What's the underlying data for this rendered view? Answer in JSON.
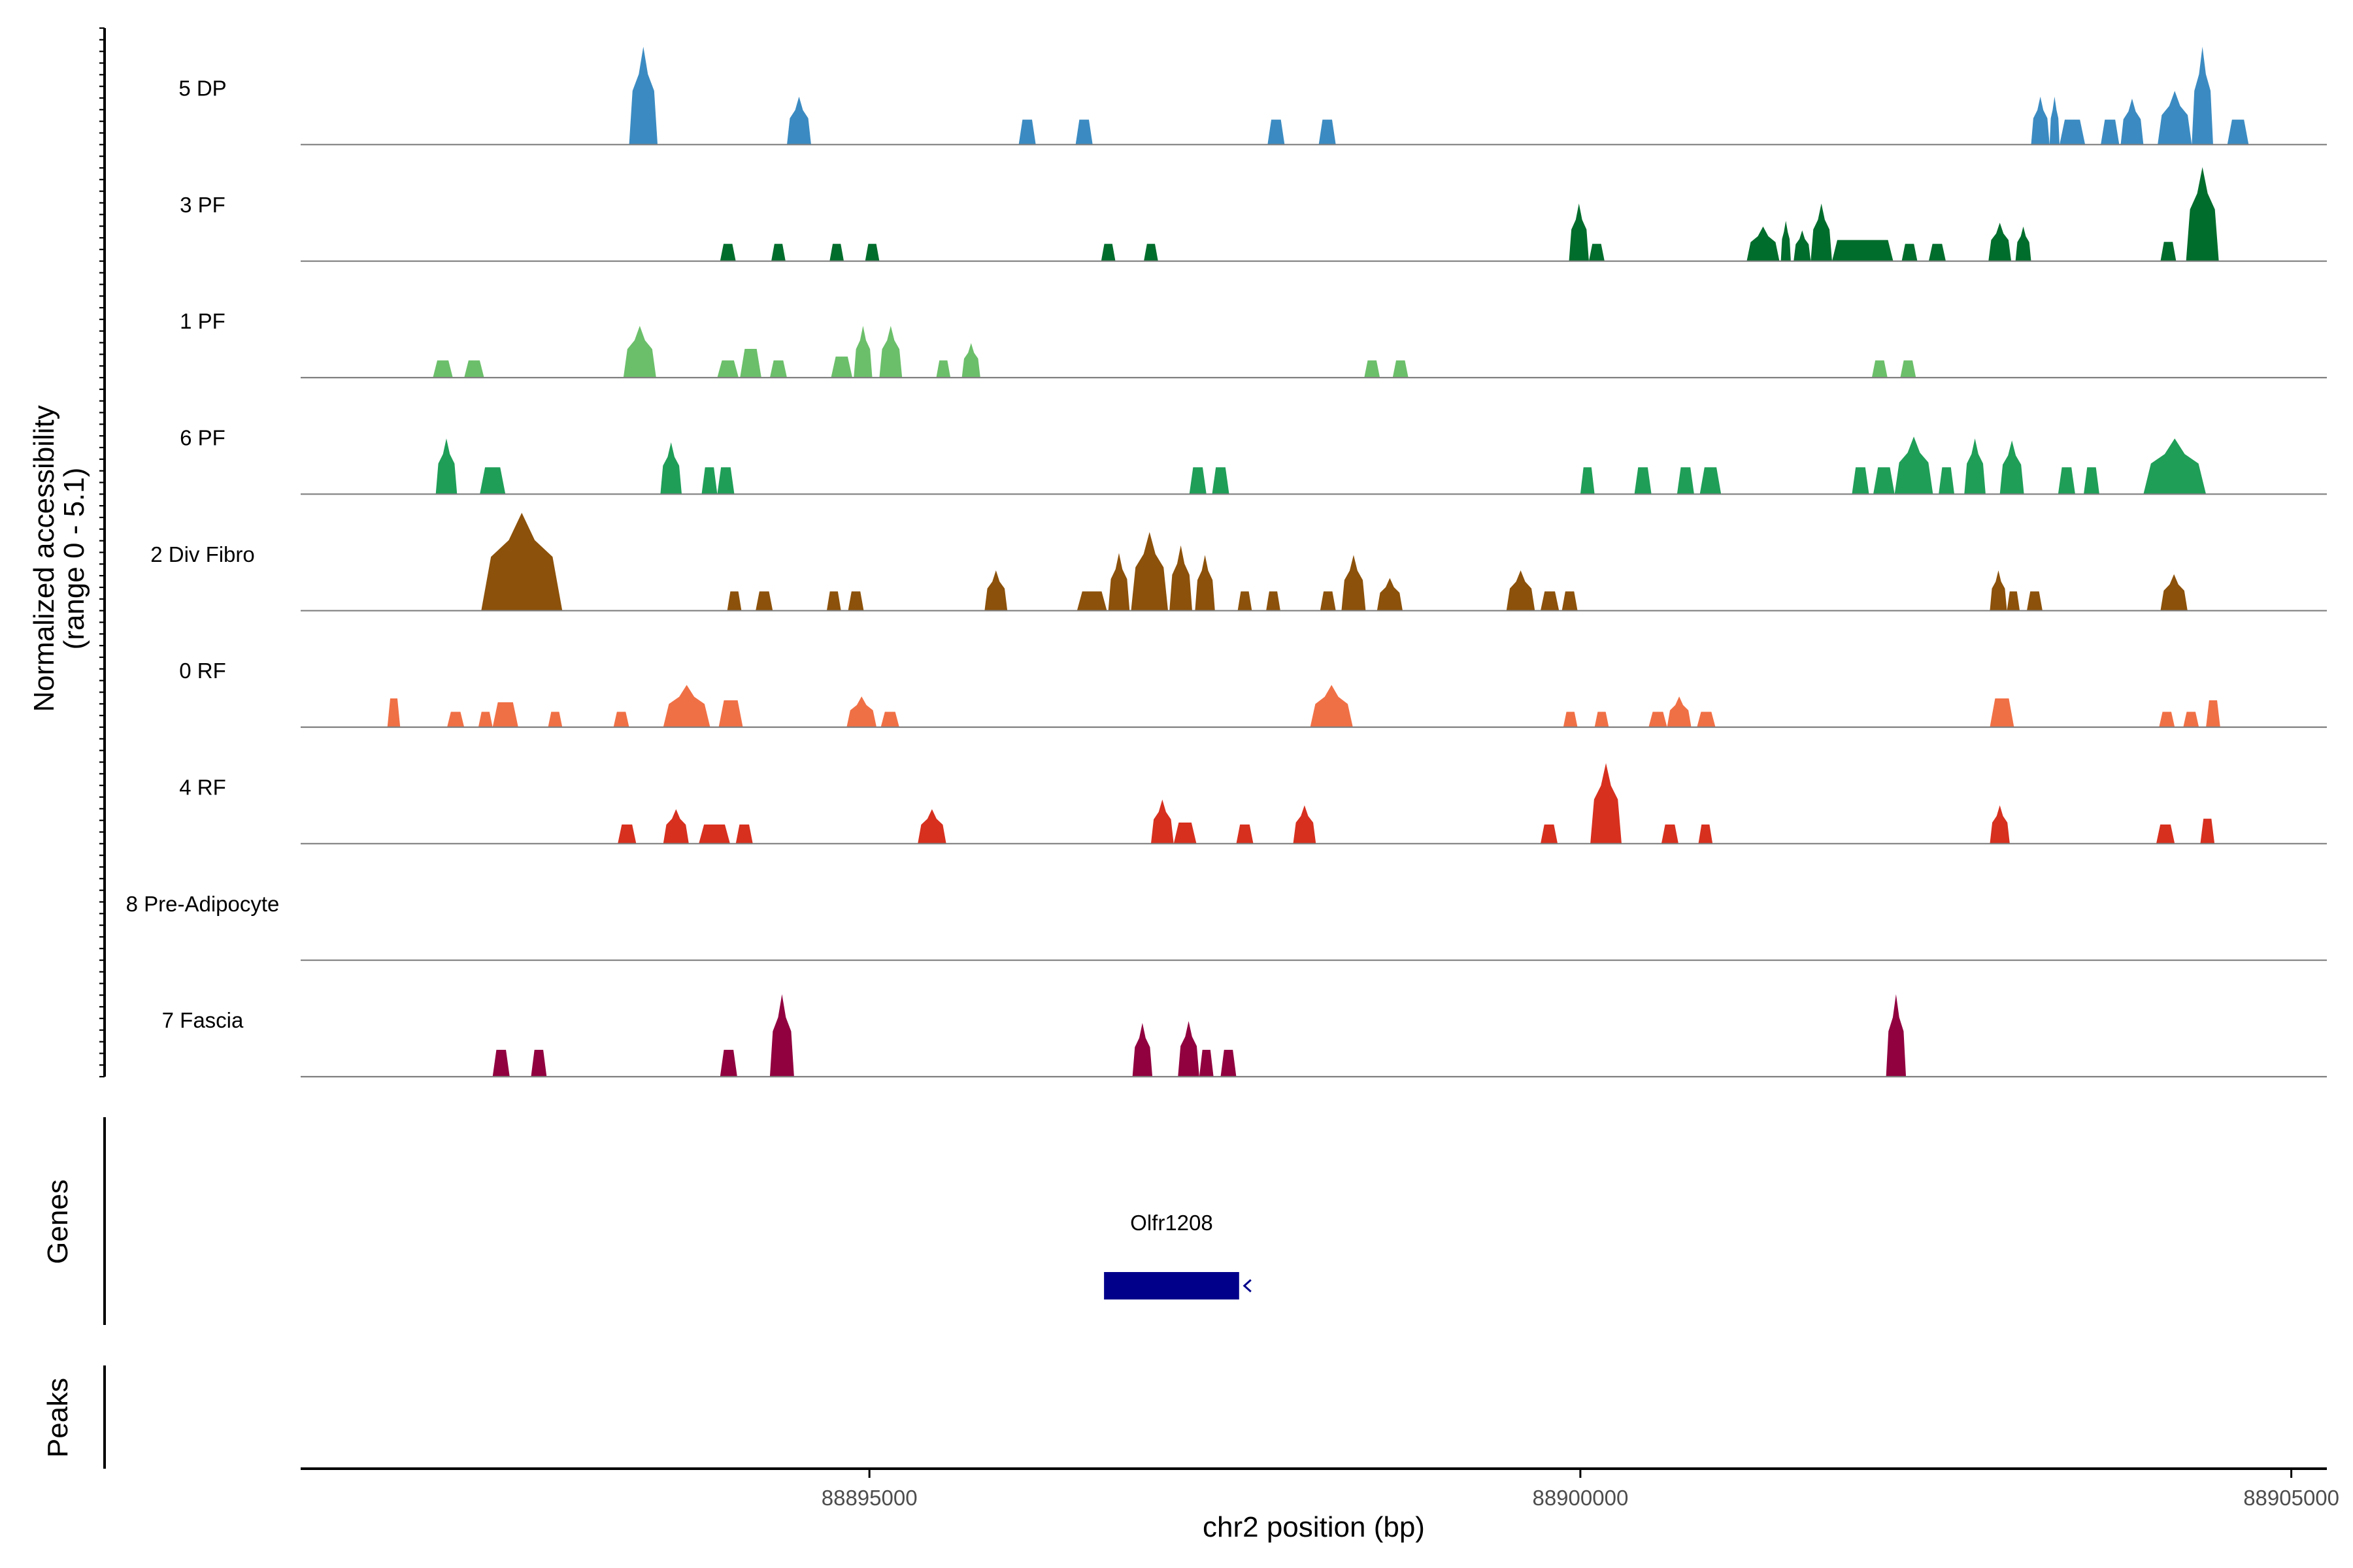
{
  "chart_data": {
    "type": "area",
    "title": "",
    "region": {
      "chrom": "chr2",
      "start": 88891000,
      "end": 88905250
    },
    "ylabel_lines": [
      "Normalized accessibility",
      "(range 0 - 5.1)"
    ],
    "ylim": [
      0,
      5.1
    ],
    "xlabel": "chr2 position (bp)",
    "xticks": [
      {
        "value": 88895000,
        "label": "88895000"
      },
      {
        "value": 88900000,
        "label": "88900000"
      },
      {
        "value": 88905000,
        "label": "88905000"
      }
    ],
    "tracks": [
      {
        "name": "5 DP",
        "color": "#3b8bc2",
        "peaks": [
          [
            88893310,
            88893510,
            5.1
          ],
          [
            88894420,
            88894590,
            2.5
          ],
          [
            88896050,
            88896170,
            1.3
          ],
          [
            88896450,
            88896570,
            1.3
          ],
          [
            88897800,
            88897920,
            1.3
          ],
          [
            88898160,
            88898280,
            1.3
          ],
          [
            88903170,
            88903300,
            2.5
          ],
          [
            88903300,
            88903370,
            2.5
          ],
          [
            88903370,
            88903550,
            1.3
          ],
          [
            88903660,
            88903790,
            1.3
          ],
          [
            88903800,
            88903960,
            2.4
          ],
          [
            88904060,
            88904300,
            2.8
          ],
          [
            88904300,
            88904450,
            5.1
          ],
          [
            88904550,
            88904700,
            1.3
          ]
        ]
      },
      {
        "name": "3 PF",
        "color": "#006d2c",
        "peaks": [
          [
            88893950,
            88894060,
            0.9
          ],
          [
            88894310,
            88894410,
            0.9
          ],
          [
            88894720,
            88894820,
            0.9
          ],
          [
            88894970,
            88895070,
            0.9
          ],
          [
            88896630,
            88896730,
            0.9
          ],
          [
            88896930,
            88897030,
            0.9
          ],
          [
            88899920,
            88900060,
            3.0
          ],
          [
            88900060,
            88900170,
            0.9
          ],
          [
            88901170,
            88901400,
            1.8
          ],
          [
            88901410,
            88901480,
            2.1
          ],
          [
            88901500,
            88901620,
            1.6
          ],
          [
            88901620,
            88901770,
            3.0
          ],
          [
            88901770,
            88902200,
            1.1
          ],
          [
            88902260,
            88902370,
            0.9
          ],
          [
            88902450,
            88902570,
            0.9
          ],
          [
            88902870,
            88903030,
            2.0
          ],
          [
            88903060,
            88903170,
            1.8
          ],
          [
            88904080,
            88904190,
            1.0
          ],
          [
            88904260,
            88904490,
            4.9
          ]
        ]
      },
      {
        "name": "1 PF",
        "color": "#6bbf6a",
        "peaks": [
          [
            88891930,
            88892070,
            0.9
          ],
          [
            88892150,
            88892290,
            0.9
          ],
          [
            88893270,
            88893500,
            2.7
          ],
          [
            88893930,
            88894080,
            0.9
          ],
          [
            88894090,
            88894240,
            1.5
          ],
          [
            88894300,
            88894420,
            0.9
          ],
          [
            88894730,
            88894880,
            1.1
          ],
          [
            88894890,
            88895020,
            2.7
          ],
          [
            88895070,
            88895230,
            2.7
          ],
          [
            88895470,
            88895570,
            0.9
          ],
          [
            88895650,
            88895780,
            1.8
          ],
          [
            88898480,
            88898590,
            0.9
          ],
          [
            88898680,
            88898790,
            0.9
          ],
          [
            88902050,
            88902160,
            0.9
          ],
          [
            88902250,
            88902360,
            0.9
          ]
        ]
      },
      {
        "name": "6 PF",
        "color": "#1f9e58",
        "peaks": [
          [
            88891950,
            88892100,
            2.9
          ],
          [
            88892260,
            88892440,
            1.4
          ],
          [
            88893530,
            88893680,
            2.7
          ],
          [
            88893820,
            88893930,
            1.4
          ],
          [
            88893930,
            88894050,
            1.4
          ],
          [
            88897250,
            88897370,
            1.4
          ],
          [
            88897410,
            88897530,
            1.4
          ],
          [
            88900000,
            88900100,
            1.4
          ],
          [
            88900380,
            88900500,
            1.4
          ],
          [
            88900680,
            88900800,
            1.4
          ],
          [
            88900840,
            88900990,
            1.4
          ],
          [
            88901910,
            88902030,
            1.4
          ],
          [
            88902060,
            88902210,
            1.4
          ],
          [
            88902210,
            88902480,
            3.0
          ],
          [
            88902520,
            88902630,
            1.4
          ],
          [
            88902700,
            88902850,
            2.9
          ],
          [
            88902950,
            88903120,
            2.8
          ],
          [
            88903360,
            88903480,
            1.4
          ],
          [
            88903540,
            88903650,
            1.4
          ],
          [
            88903960,
            88904400,
            2.9
          ]
        ]
      },
      {
        "name": "2 Div Fibro",
        "color": "#8c510a",
        "peaks": [
          [
            88892270,
            88892840,
            5.1
          ],
          [
            88894000,
            88894100,
            1.0
          ],
          [
            88894200,
            88894320,
            1.0
          ],
          [
            88894700,
            88894800,
            1.0
          ],
          [
            88894850,
            88894960,
            1.0
          ],
          [
            88895810,
            88895970,
            2.1
          ],
          [
            88896460,
            88896670,
            1.0
          ],
          [
            88896680,
            88896830,
            3.0
          ],
          [
            88896840,
            88897100,
            4.1
          ],
          [
            88897110,
            88897270,
            3.4
          ],
          [
            88897290,
            88897430,
            2.9
          ],
          [
            88897590,
            88897690,
            1.0
          ],
          [
            88897790,
            88897890,
            1.0
          ],
          [
            88898170,
            88898280,
            1.0
          ],
          [
            88898320,
            88898490,
            2.9
          ],
          [
            88898570,
            88898750,
            1.7
          ],
          [
            88899480,
            88899680,
            2.1
          ],
          [
            88899720,
            88899850,
            1.0
          ],
          [
            88899870,
            88899980,
            1.0
          ],
          [
            88902880,
            88903000,
            2.1
          ],
          [
            88903000,
            88903090,
            1.0
          ],
          [
            88903140,
            88903250,
            1.0
          ],
          [
            88904080,
            88904270,
            1.9
          ]
        ]
      },
      {
        "name": "0 RF",
        "color": "#f07046",
        "peaks": [
          [
            88891610,
            88891700,
            1.5
          ],
          [
            88892030,
            88892150,
            0.8
          ],
          [
            88892250,
            88892350,
            0.8
          ],
          [
            88892350,
            88892530,
            1.3
          ],
          [
            88892740,
            88892840,
            0.8
          ],
          [
            88893200,
            88893310,
            0.8
          ],
          [
            88893550,
            88893880,
            2.2
          ],
          [
            88893940,
            88894110,
            1.4
          ],
          [
            88894840,
            88895050,
            1.6
          ],
          [
            88895080,
            88895210,
            0.8
          ],
          [
            88898100,
            88898400,
            2.2
          ],
          [
            88899880,
            88899980,
            0.8
          ],
          [
            88900100,
            88900200,
            0.8
          ],
          [
            88900480,
            88900610,
            0.8
          ],
          [
            88900610,
            88900780,
            1.6
          ],
          [
            88900820,
            88900950,
            0.8
          ],
          [
            88902880,
            88903050,
            1.5
          ],
          [
            88904070,
            88904180,
            0.8
          ],
          [
            88904240,
            88904350,
            0.8
          ],
          [
            88904400,
            88904500,
            1.4
          ]
        ]
      },
      {
        "name": "4 RF",
        "color": "#d7301f",
        "peaks": [
          [
            88893230,
            88893360,
            1.0
          ],
          [
            88893550,
            88893730,
            1.8
          ],
          [
            88893800,
            88894020,
            1.0
          ],
          [
            88894060,
            88894180,
            1.0
          ],
          [
            88895340,
            88895540,
            1.8
          ],
          [
            88896980,
            88897140,
            2.3
          ],
          [
            88897140,
            88897300,
            1.1
          ],
          [
            88897580,
            88897700,
            1.0
          ],
          [
            88897980,
            88898140,
            2.0
          ],
          [
            88899720,
            88899840,
            1.0
          ],
          [
            88900070,
            88900290,
            4.2
          ],
          [
            88900570,
            88900690,
            1.0
          ],
          [
            88900830,
            88900930,
            1.0
          ],
          [
            88902880,
            88903020,
            2.0
          ],
          [
            88904050,
            88904180,
            1.0
          ],
          [
            88904360,
            88904460,
            1.3
          ]
        ]
      },
      {
        "name": "8 Pre-Adipocyte",
        "color": "#cc4c02",
        "peaks": []
      },
      {
        "name": "7 Fascia",
        "color": "#91003f",
        "peaks": [
          [
            88892350,
            88892470,
            1.4
          ],
          [
            88892620,
            88892730,
            1.4
          ],
          [
            88893950,
            88894070,
            1.4
          ],
          [
            88894300,
            88894470,
            4.3
          ],
          [
            88896850,
            88896990,
            2.8
          ],
          [
            88897170,
            88897320,
            2.9
          ],
          [
            88897320,
            88897420,
            1.4
          ],
          [
            88897470,
            88897580,
            1.4
          ],
          [
            88902150,
            88902290,
            4.3
          ]
        ]
      }
    ],
    "gene_track": {
      "label": "Genes",
      "genes": [
        {
          "name": "Olfr1208",
          "start": 88896650,
          "end": 88897600,
          "strand": "-"
        }
      ]
    },
    "peaks_track": {
      "label": "Peaks",
      "peaks": []
    },
    "gene_color": "#00008b"
  }
}
